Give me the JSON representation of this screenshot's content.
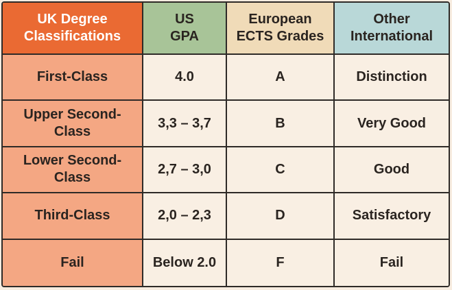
{
  "headers": [
    "UK Degree\nClassifications",
    "US\nGPA",
    "European\nECTS Grades",
    "Other\nInternational"
  ],
  "rows": [
    [
      "First-Class",
      "4.0",
      "A",
      "Distinction"
    ],
    [
      "Upper Second-Class",
      "3,3 – 3,7",
      "B",
      "Very Good"
    ],
    [
      "Lower Second-Class",
      "2,7 – 3,0",
      "C",
      "Good"
    ],
    [
      "Third-Class",
      "2,0 – 2,3",
      "D",
      "Satisfactory"
    ],
    [
      "Fail",
      "Below 2.0",
      "F",
      "Fail"
    ]
  ],
  "colors": {
    "uk_header": "#ea6a33",
    "us_header": "#a8c498",
    "eu_header": "#f0dbb8",
    "intl_header": "#b9d8d8",
    "uk_column": "#f4a783",
    "body": "#f9efe3"
  }
}
